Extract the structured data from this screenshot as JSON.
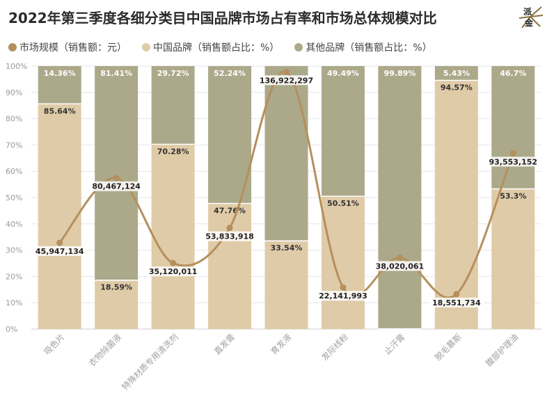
{
  "title": "2022年第三季度各细分类目中国品牌市场占有率和市场总体规模对比",
  "logo": {
    "text_top": "派",
    "text_bottom": "金"
  },
  "legend": [
    {
      "label": "市场规模（销售额：元）",
      "color": "#b58f5c"
    },
    {
      "label": "中国品牌（销售额占比：%）",
      "color": "#e0cba8"
    },
    {
      "label": "其他品牌（销售额占比：%）",
      "color": "#aca98a"
    }
  ],
  "chart_data": {
    "type": "bar",
    "stacked": true,
    "categories": [
      "吸色片",
      "衣物除菌液",
      "特殊材质专用清洗剂",
      "直发膏",
      "育发液",
      "发际线粉",
      "止汗膏",
      "脱毛慕斯",
      "腹部护理油"
    ],
    "series": [
      {
        "name": "中国品牌（销售额占比：%）",
        "values": [
          85.64,
          18.59,
          70.28,
          47.76,
          33.54,
          50.51,
          0.11,
          94.57,
          53.3
        ],
        "labels": [
          "85.64%",
          "18.59%",
          "70.28%",
          "47.76%",
          "33.54%",
          "50.51%",
          "",
          "94.57%",
          "53.3%"
        ],
        "color": "#e0cba8"
      },
      {
        "name": "其他品牌（销售额占比：%）",
        "values": [
          14.36,
          81.41,
          29.72,
          52.24,
          66.46,
          49.49,
          99.89,
          5.43,
          46.7
        ],
        "labels": [
          "14.36%",
          "81.41%",
          "29.72%",
          "52.24%",
          "",
          "49.49%",
          "99.89%",
          "5.43%",
          "46.7%"
        ],
        "color": "#aca98a"
      }
    ],
    "line": {
      "name": "市场规模（销售额：元）",
      "values": [
        45947134,
        80467124,
        35120011,
        53833918,
        136922297,
        22141993,
        38020061,
        18551734,
        93553152
      ],
      "labels": [
        "45,947,134",
        "80,467,124",
        "35,120,011",
        "53,833,918",
        "136,922,297",
        "22,141,993",
        "38,020,061",
        "18,551,734",
        "93,553,152"
      ],
      "color": "#b58f5c"
    },
    "yaxis": {
      "ticks": [
        "0%",
        "10%",
        "20%",
        "30%",
        "40%",
        "50%",
        "60%",
        "70%",
        "80%",
        "90%",
        "100%"
      ],
      "ylim": [
        0,
        100
      ]
    },
    "grid": true,
    "legend_position": "top-left"
  }
}
